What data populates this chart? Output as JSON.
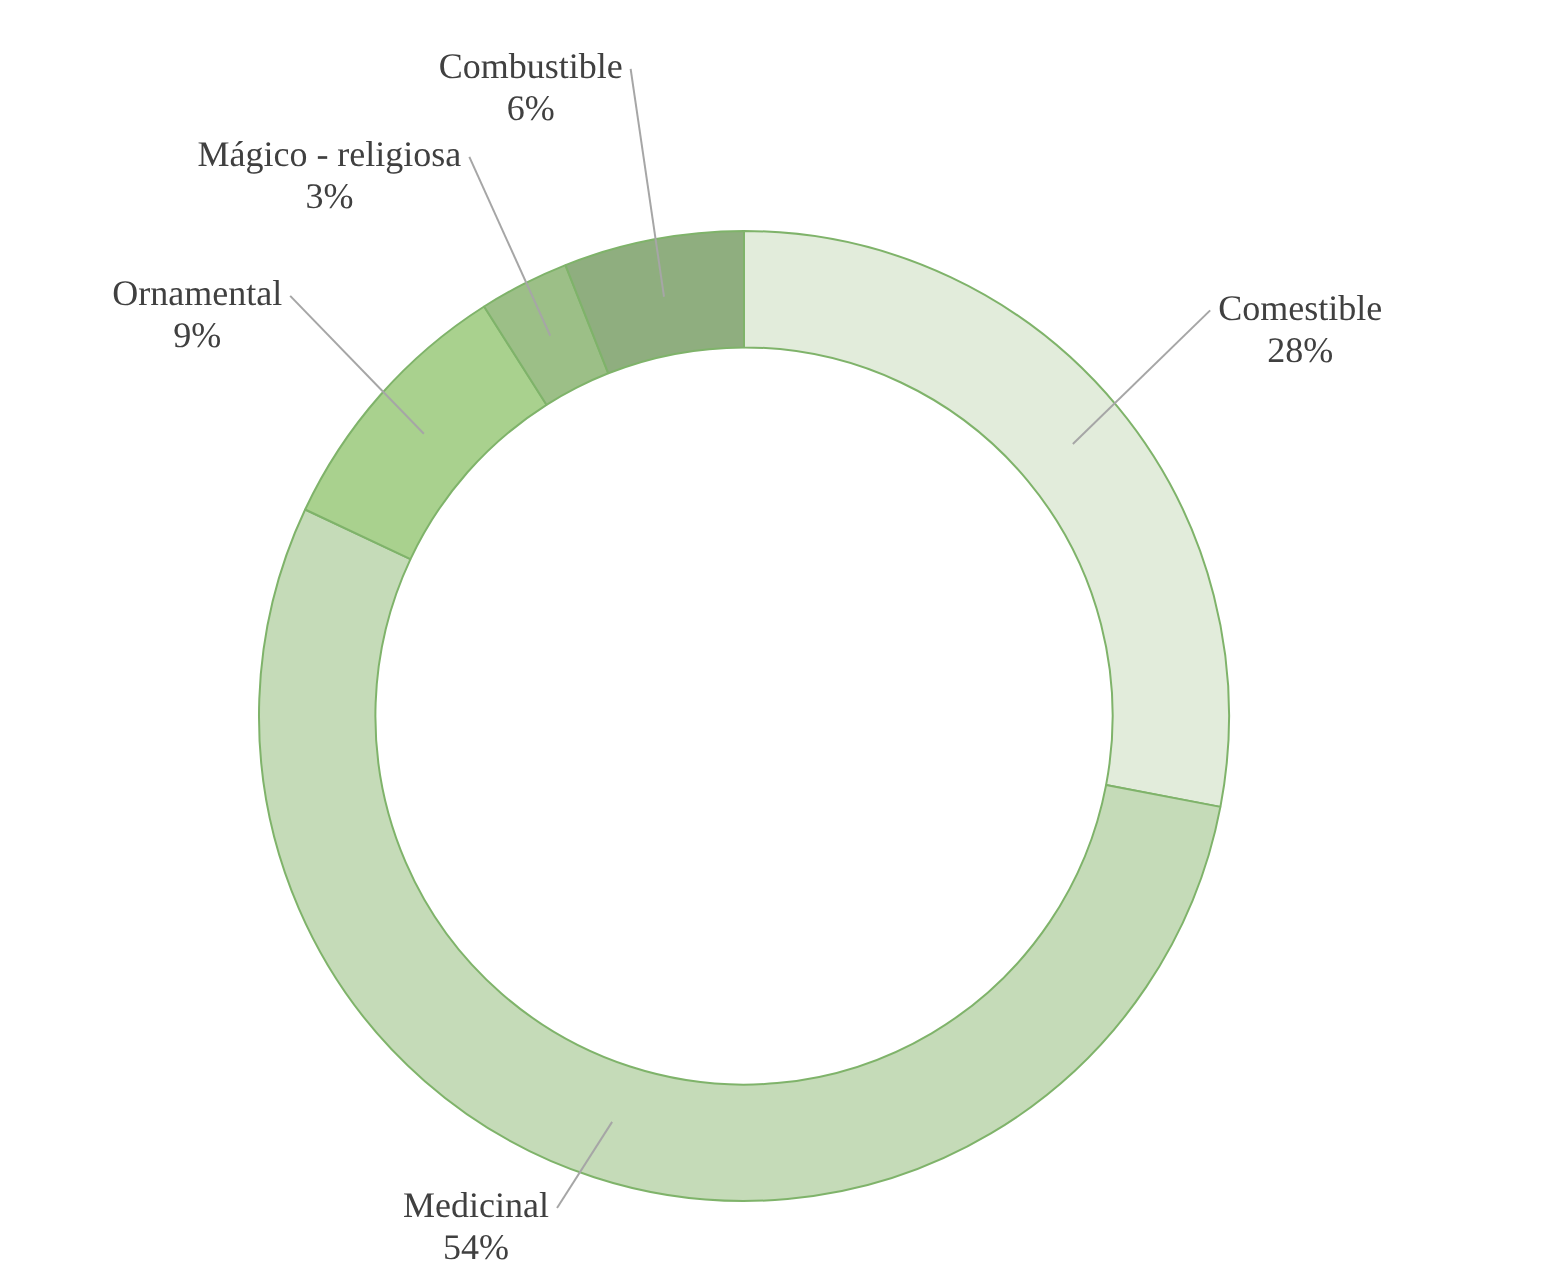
{
  "chart_data": {
    "type": "donut",
    "categories": [
      "Comestible",
      "Medicinal",
      "Ornamental",
      "Mágico - religiosa",
      "Combustible"
    ],
    "values": [
      28,
      54,
      9,
      3,
      6
    ],
    "value_labels": [
      "28%",
      "54%",
      "9%",
      "3%",
      "6%"
    ],
    "colors": [
      "#e2ecdb",
      "#c5dbb8",
      "#a9d18e",
      "#9cbf87",
      "#8fae7f"
    ],
    "legend": false
  }
}
